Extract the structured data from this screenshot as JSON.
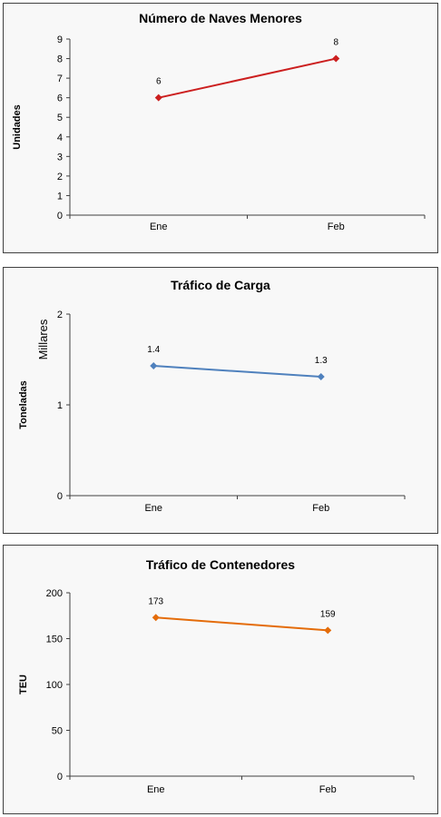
{
  "chart_data": [
    {
      "type": "line",
      "title": "Número de Naves Menores",
      "ylabel": "Unidades",
      "unit_label": "",
      "categories": [
        "Ene",
        "Feb"
      ],
      "series": [
        {
          "values": [
            6,
            8
          ],
          "data_labels": [
            "6",
            "8"
          ],
          "color": "#cc1f1f"
        }
      ],
      "ylim": [
        0,
        9
      ],
      "yticks": [
        0,
        1,
        2,
        3,
        4,
        5,
        6,
        7,
        8,
        9
      ],
      "ytick_labels": [
        "0",
        "1",
        "2",
        "3",
        "4",
        "5",
        "6",
        "7",
        "8",
        "9"
      ],
      "grid": false,
      "legend": "none"
    },
    {
      "type": "line",
      "title": "Tráfico de Carga",
      "ylabel": "Toneladas",
      "unit_label": "Millares",
      "categories": [
        "Ene",
        "Feb"
      ],
      "series": [
        {
          "values": [
            1.43,
            1.31
          ],
          "data_labels": [
            "1.4",
            "1.3"
          ],
          "color": "#4f81bd"
        }
      ],
      "ylim": [
        0,
        2
      ],
      "yticks": [
        0,
        1,
        2
      ],
      "ytick_labels": [
        "0",
        "1",
        "2"
      ],
      "grid": false,
      "legend": "none"
    },
    {
      "type": "line",
      "title": "Tráfico de Contenedores",
      "ylabel": "TEU",
      "unit_label": "",
      "categories": [
        "Ene",
        "Feb"
      ],
      "series": [
        {
          "values": [
            173,
            159
          ],
          "data_labels": [
            "173",
            "159"
          ],
          "color": "#e46c0a"
        }
      ],
      "ylim": [
        0,
        200
      ],
      "yticks": [
        0,
        50,
        100,
        150,
        200
      ],
      "ytick_labels": [
        "0",
        "50",
        "100",
        "150",
        "200"
      ],
      "grid": false,
      "legend": "none"
    }
  ]
}
